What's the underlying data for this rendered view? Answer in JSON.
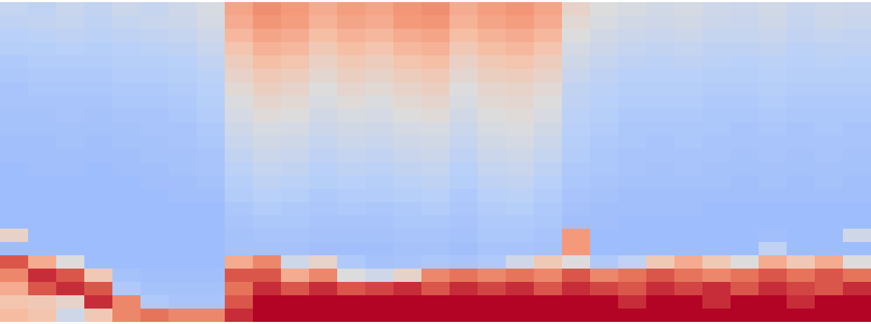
{
  "chart_data": {
    "type": "heatmap",
    "tick_labels": false,
    "zlim": [
      0,
      1
    ],
    "cells": [
      [
        0.42,
        0.4,
        0.43,
        0.41,
        0.44,
        0.42,
        0.45,
        0.48,
        0.72,
        0.78,
        0.75,
        0.7,
        0.74,
        0.72,
        0.76,
        0.78,
        0.7,
        0.74,
        0.76,
        0.72,
        0.55,
        0.5,
        0.48,
        0.46,
        0.47,
        0.45,
        0.44,
        0.46,
        0.43,
        0.45,
        0.44
      ],
      [
        0.4,
        0.41,
        0.42,
        0.4,
        0.42,
        0.43,
        0.44,
        0.47,
        0.7,
        0.76,
        0.74,
        0.68,
        0.72,
        0.7,
        0.75,
        0.76,
        0.68,
        0.72,
        0.74,
        0.7,
        0.52,
        0.48,
        0.46,
        0.45,
        0.46,
        0.44,
        0.43,
        0.45,
        0.42,
        0.44,
        0.43
      ],
      [
        0.38,
        0.39,
        0.4,
        0.39,
        0.4,
        0.41,
        0.42,
        0.45,
        0.66,
        0.72,
        0.7,
        0.64,
        0.68,
        0.66,
        0.7,
        0.72,
        0.64,
        0.68,
        0.7,
        0.66,
        0.5,
        0.46,
        0.44,
        0.43,
        0.44,
        0.42,
        0.42,
        0.43,
        0.41,
        0.42,
        0.41
      ],
      [
        0.37,
        0.37,
        0.38,
        0.37,
        0.38,
        0.39,
        0.4,
        0.43,
        0.62,
        0.68,
        0.66,
        0.6,
        0.64,
        0.62,
        0.66,
        0.68,
        0.6,
        0.64,
        0.66,
        0.62,
        0.47,
        0.44,
        0.42,
        0.41,
        0.42,
        0.4,
        0.4,
        0.41,
        0.39,
        0.4,
        0.4
      ],
      [
        0.35,
        0.36,
        0.36,
        0.36,
        0.37,
        0.37,
        0.38,
        0.41,
        0.58,
        0.64,
        0.62,
        0.56,
        0.6,
        0.58,
        0.62,
        0.64,
        0.56,
        0.6,
        0.62,
        0.58,
        0.45,
        0.42,
        0.4,
        0.39,
        0.4,
        0.39,
        0.38,
        0.39,
        0.38,
        0.39,
        0.38
      ],
      [
        0.34,
        0.35,
        0.35,
        0.35,
        0.36,
        0.36,
        0.37,
        0.39,
        0.55,
        0.6,
        0.58,
        0.53,
        0.57,
        0.55,
        0.58,
        0.6,
        0.53,
        0.57,
        0.58,
        0.55,
        0.43,
        0.4,
        0.38,
        0.38,
        0.38,
        0.37,
        0.37,
        0.38,
        0.37,
        0.37,
        0.37
      ],
      [
        0.33,
        0.34,
        0.34,
        0.34,
        0.35,
        0.35,
        0.36,
        0.38,
        0.52,
        0.57,
        0.55,
        0.5,
        0.54,
        0.52,
        0.55,
        0.57,
        0.5,
        0.54,
        0.55,
        0.52,
        0.41,
        0.39,
        0.37,
        0.37,
        0.37,
        0.36,
        0.36,
        0.37,
        0.36,
        0.36,
        0.36
      ],
      [
        0.33,
        0.33,
        0.33,
        0.33,
        0.34,
        0.34,
        0.35,
        0.37,
        0.49,
        0.54,
        0.52,
        0.48,
        0.51,
        0.49,
        0.52,
        0.54,
        0.48,
        0.52,
        0.53,
        0.5,
        0.4,
        0.38,
        0.36,
        0.36,
        0.36,
        0.35,
        0.35,
        0.36,
        0.35,
        0.35,
        0.35
      ],
      [
        0.32,
        0.32,
        0.33,
        0.32,
        0.33,
        0.33,
        0.34,
        0.36,
        0.47,
        0.51,
        0.5,
        0.46,
        0.48,
        0.47,
        0.5,
        0.51,
        0.46,
        0.5,
        0.51,
        0.48,
        0.39,
        0.37,
        0.35,
        0.35,
        0.35,
        0.34,
        0.34,
        0.35,
        0.34,
        0.34,
        0.34
      ],
      [
        0.32,
        0.32,
        0.32,
        0.32,
        0.32,
        0.33,
        0.33,
        0.35,
        0.45,
        0.48,
        0.47,
        0.44,
        0.46,
        0.45,
        0.47,
        0.48,
        0.44,
        0.48,
        0.49,
        0.46,
        0.38,
        0.36,
        0.34,
        0.34,
        0.34,
        0.34,
        0.33,
        0.34,
        0.33,
        0.34,
        0.33
      ],
      [
        0.31,
        0.31,
        0.32,
        0.31,
        0.32,
        0.32,
        0.33,
        0.34,
        0.43,
        0.46,
        0.45,
        0.42,
        0.44,
        0.43,
        0.45,
        0.46,
        0.42,
        0.46,
        0.47,
        0.44,
        0.37,
        0.35,
        0.34,
        0.33,
        0.34,
        0.33,
        0.33,
        0.33,
        0.33,
        0.33,
        0.33
      ],
      [
        0.31,
        0.31,
        0.31,
        0.31,
        0.31,
        0.32,
        0.32,
        0.33,
        0.41,
        0.44,
        0.43,
        0.4,
        0.42,
        0.41,
        0.43,
        0.44,
        0.4,
        0.44,
        0.45,
        0.42,
        0.36,
        0.34,
        0.33,
        0.33,
        0.33,
        0.33,
        0.32,
        0.33,
        0.32,
        0.33,
        0.32
      ],
      [
        0.3,
        0.31,
        0.31,
        0.3,
        0.31,
        0.31,
        0.32,
        0.33,
        0.39,
        0.42,
        0.41,
        0.38,
        0.4,
        0.39,
        0.41,
        0.42,
        0.38,
        0.42,
        0.43,
        0.4,
        0.35,
        0.34,
        0.33,
        0.32,
        0.33,
        0.32,
        0.32,
        0.32,
        0.32,
        0.32,
        0.32
      ],
      [
        0.3,
        0.3,
        0.3,
        0.3,
        0.3,
        0.31,
        0.31,
        0.32,
        0.37,
        0.4,
        0.39,
        0.37,
        0.38,
        0.37,
        0.39,
        0.4,
        0.37,
        0.4,
        0.41,
        0.38,
        0.34,
        0.33,
        0.32,
        0.32,
        0.32,
        0.32,
        0.31,
        0.32,
        0.31,
        0.32,
        0.31
      ],
      [
        0.3,
        0.3,
        0.3,
        0.3,
        0.3,
        0.3,
        0.31,
        0.31,
        0.36,
        0.38,
        0.37,
        0.35,
        0.36,
        0.36,
        0.37,
        0.38,
        0.35,
        0.38,
        0.39,
        0.36,
        0.33,
        0.32,
        0.31,
        0.31,
        0.31,
        0.31,
        0.31,
        0.31,
        0.31,
        0.31,
        0.31
      ],
      [
        0.3,
        0.3,
        0.3,
        0.3,
        0.3,
        0.3,
        0.3,
        0.3,
        0.34,
        0.36,
        0.35,
        0.34,
        0.35,
        0.34,
        0.35,
        0.36,
        0.34,
        0.36,
        0.37,
        0.35,
        0.32,
        0.31,
        0.31,
        0.31,
        0.31,
        0.3,
        0.3,
        0.3,
        0.3,
        0.3,
        0.3
      ],
      [
        0.3,
        0.3,
        0.3,
        0.3,
        0.3,
        0.3,
        0.3,
        0.3,
        0.33,
        0.34,
        0.34,
        0.33,
        0.33,
        0.33,
        0.34,
        0.34,
        0.33,
        0.35,
        0.35,
        0.34,
        0.31,
        0.31,
        0.3,
        0.3,
        0.3,
        0.3,
        0.3,
        0.3,
        0.3,
        0.3,
        0.3
      ],
      [
        0.55,
        0.3,
        0.3,
        0.3,
        0.3,
        0.3,
        0.3,
        0.3,
        0.32,
        0.33,
        0.33,
        0.32,
        0.32,
        0.32,
        0.33,
        0.33,
        0.32,
        0.34,
        0.34,
        0.33,
        0.75,
        0.3,
        0.3,
        0.3,
        0.3,
        0.3,
        0.3,
        0.31,
        0.3,
        0.3,
        0.45
      ],
      [
        0.3,
        0.3,
        0.3,
        0.3,
        0.3,
        0.3,
        0.3,
        0.3,
        0.32,
        0.32,
        0.32,
        0.31,
        0.31,
        0.31,
        0.32,
        0.32,
        0.31,
        0.33,
        0.33,
        0.32,
        0.75,
        0.3,
        0.3,
        0.3,
        0.3,
        0.3,
        0.3,
        0.4,
        0.3,
        0.3,
        0.3
      ],
      [
        0.9,
        0.7,
        0.5,
        0.3,
        0.3,
        0.3,
        0.3,
        0.3,
        0.7,
        0.8,
        0.45,
        0.55,
        0.35,
        0.32,
        0.33,
        0.34,
        0.33,
        0.35,
        0.45,
        0.6,
        0.5,
        0.35,
        0.4,
        0.6,
        0.7,
        0.6,
        0.5,
        0.7,
        0.6,
        0.7,
        0.5
      ],
      [
        0.8,
        0.95,
        0.9,
        0.6,
        0.32,
        0.31,
        0.31,
        0.31,
        0.9,
        0.9,
        0.7,
        0.8,
        0.5,
        0.45,
        0.55,
        0.8,
        0.85,
        0.8,
        0.85,
        0.8,
        0.9,
        0.8,
        0.85,
        0.9,
        0.85,
        0.8,
        0.85,
        0.9,
        0.85,
        0.9,
        0.85
      ],
      [
        0.7,
        0.9,
        0.95,
        0.9,
        0.35,
        0.32,
        0.32,
        0.32,
        0.85,
        0.95,
        0.9,
        0.95,
        0.9,
        0.92,
        0.95,
        0.9,
        0.95,
        0.92,
        0.95,
        0.9,
        0.95,
        0.92,
        0.9,
        0.95,
        0.92,
        0.95,
        0.9,
        0.95,
        0.92,
        0.9,
        0.95
      ],
      [
        0.62,
        0.6,
        0.55,
        0.95,
        0.8,
        0.35,
        0.33,
        0.33,
        0.9,
        1,
        1,
        1,
        1,
        1,
        1,
        1,
        1,
        1,
        1,
        1,
        1,
        1,
        0.95,
        1,
        1,
        0.95,
        1,
        1,
        0.95,
        1,
        1
      ],
      [
        0.65,
        0.62,
        0.45,
        0.6,
        0.8,
        0.85,
        0.8,
        0.8,
        0.95,
        1,
        1,
        1,
        1,
        1,
        1,
        1,
        1,
        1,
        1,
        1,
        1,
        1,
        1,
        1,
        1,
        1,
        1,
        1,
        1,
        1,
        1
      ]
    ]
  }
}
